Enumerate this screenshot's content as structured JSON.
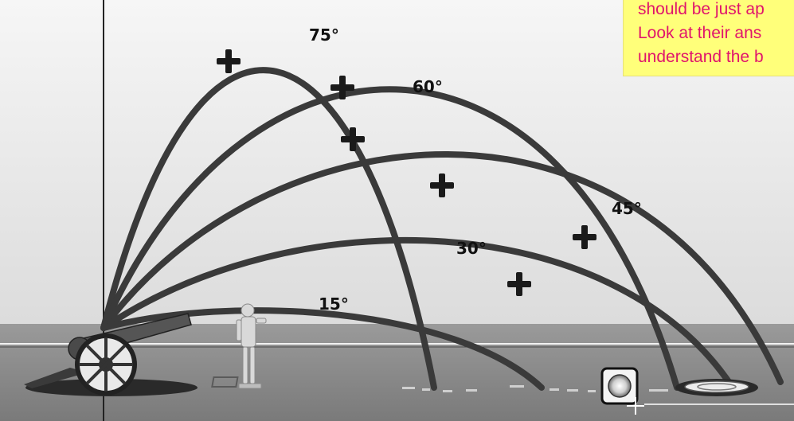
{
  "note": {
    "lines": [
      "should be just ap",
      "Look at their ans",
      "understand the b"
    ]
  },
  "trajectories": [
    {
      "label": "75°",
      "angle_deg": 75
    },
    {
      "label": "60°",
      "angle_deg": 60
    },
    {
      "label": "45°",
      "angle_deg": 45
    },
    {
      "label": "30°",
      "angle_deg": 30
    },
    {
      "label": "15°",
      "angle_deg": 15
    }
  ],
  "colors": {
    "trajectory": "#3a3a3a",
    "marker": "#1a1a1a",
    "note_background": "#ffff7a",
    "note_text": "#e0146c",
    "ground": "#8e8e8e",
    "sky_top": "#f4f4f4"
  },
  "icons": [
    "cannon-icon",
    "statue-icon",
    "target-icon",
    "crosshair-icon"
  ]
}
